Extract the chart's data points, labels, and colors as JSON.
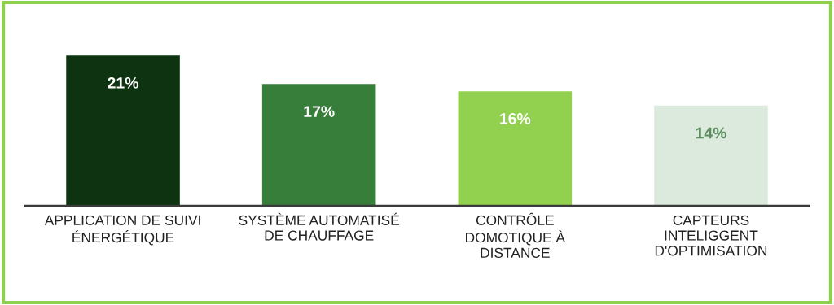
{
  "chart_data": {
    "type": "bar",
    "categories": [
      "APPLICATION DE SUIVI\nÉNERGÉTIQUE",
      "SYSTÈME AUTOMATISÉ\nDE CHAUFFAGE",
      "CONTRÔLE\nDOMOTIQUE À\nDISTANCE",
      "CAPTEURS\nINTELIGGENT\nD'OPTIMISATION"
    ],
    "values": [
      21,
      17,
      16,
      14
    ],
    "colors": [
      "#0d3311",
      "#367e3a",
      "#92d050",
      "#dbeadc"
    ],
    "value_labels": [
      "21%",
      "17%",
      "16%",
      "14%"
    ],
    "grid": false
  }
}
